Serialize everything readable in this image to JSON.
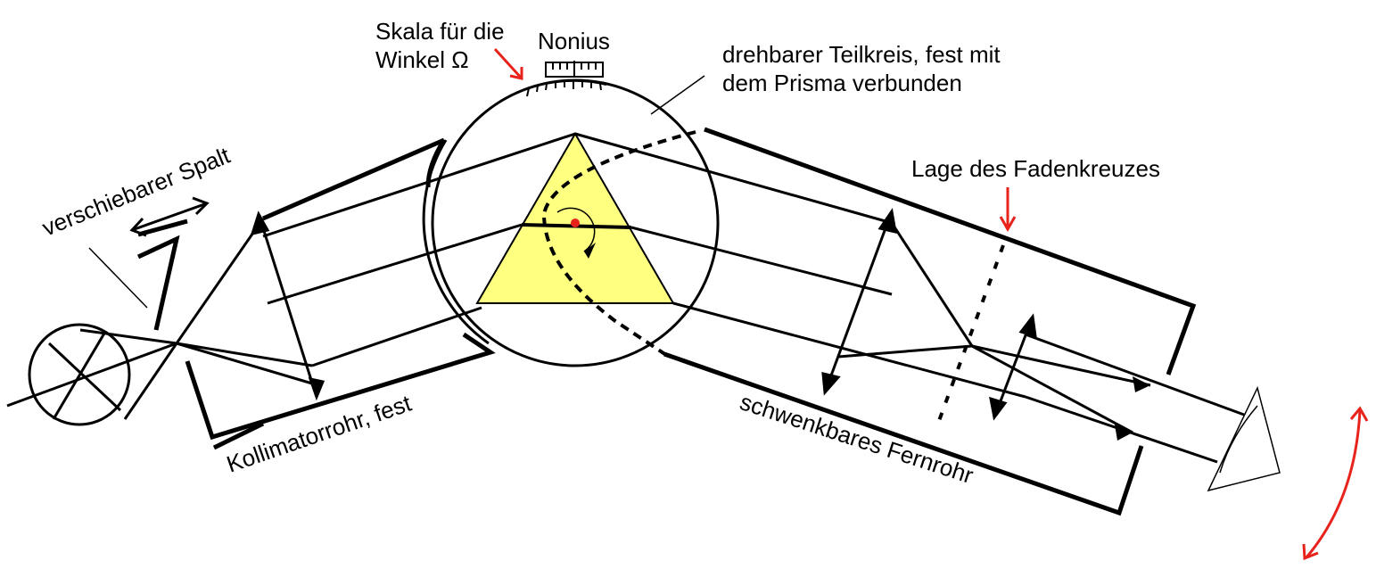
{
  "labels": {
    "scale": "Skala für die\nWinkel Ω",
    "vernier": "Nonius",
    "circle": "drehbarer Teilkreis, fest mit\ndem Prisma verbunden",
    "crosshair": "Lage des Fadenkreuzes",
    "slit": "verschiebarer Spalt",
    "collimator": "Kollimatorrohr, fest",
    "telescope": "schwenkbares Fernrohr"
  },
  "colors": {
    "line": "#000000",
    "accent": "#e8231c",
    "prism": "#ffff80"
  }
}
